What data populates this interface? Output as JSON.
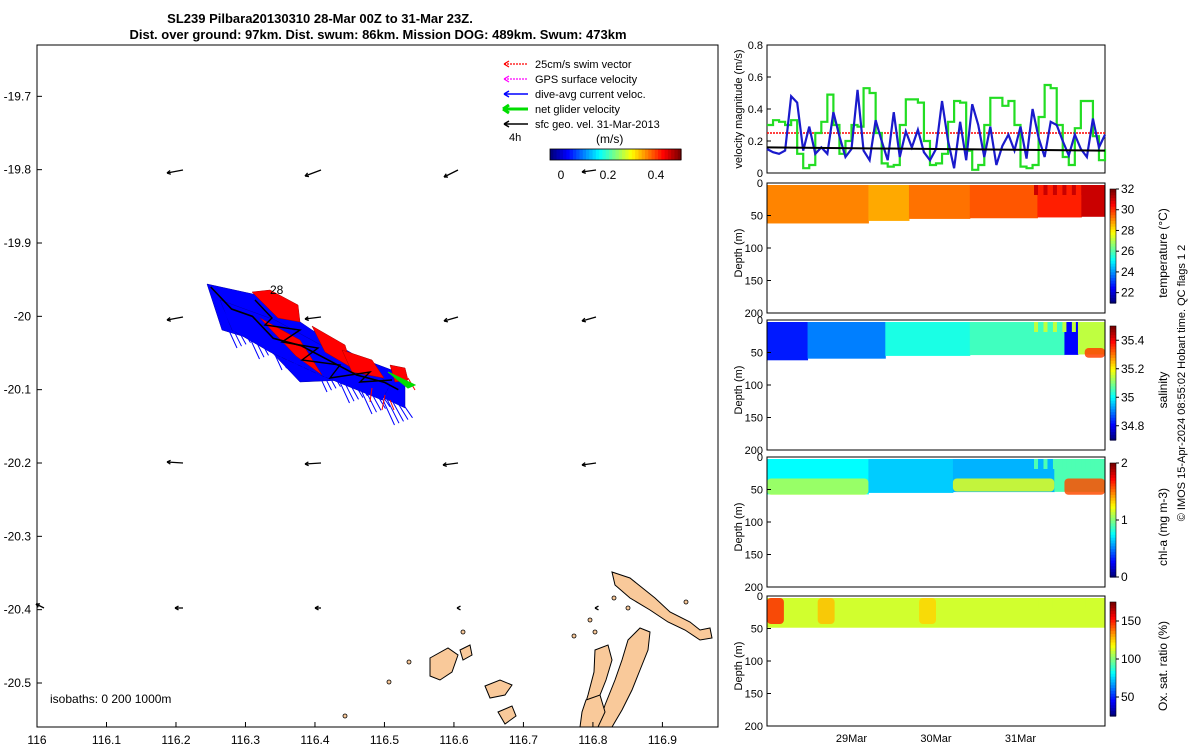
{
  "title_line1": "SL239 Pilbara20130310 28-Mar 00Z to 31-Mar 23Z.",
  "title_line2": "Dist. over ground: 97km. Dist. swum: 86km. Mission DOG: 489km. Swum: 473km",
  "credit": "© IMOS 15-Apr-2024 08:55:02 Hobart time. QC flags 1  2",
  "colors": {
    "swim": "#ff0000",
    "gps": "#ff00ff",
    "dive_avg": "#0000ff",
    "net": "#00dd00",
    "sfc_geo": "#000000",
    "land": "#f9c99a",
    "green_line": "#22dd22"
  },
  "chart_data": [
    {
      "id": "map",
      "type": "scatter",
      "x_ticks": [
        "116",
        "116.1",
        "116.2",
        "116.3",
        "116.4",
        "116.5",
        "116.6",
        "116.7",
        "116.8",
        "116.9"
      ],
      "y_ticks": [
        "-19.7",
        "-19.8",
        "-19.9",
        "-20",
        "-20.1",
        "-20.2",
        "-20.3",
        "-20.4",
        "-20.5"
      ],
      "xlim": [
        116.0,
        116.98
      ],
      "ylim": [
        -20.56,
        -19.63
      ],
      "legend": {
        "placement": "top-right",
        "entries": [
          "25cm/s swim vector",
          "GPS surface velocity",
          "dive-avg current veloc.",
          "net glider velocity",
          "sfc geo. vel. 31-Mar-2013"
        ],
        "interval": "4h"
      },
      "colorbar": {
        "label": "(m/s)",
        "ticks": [
          "0",
          "0.2",
          "0.4"
        ],
        "range": [
          0,
          0.5
        ]
      },
      "track_label": "28",
      "isobaths_label": "isobaths: 0   200  1000m",
      "track_points": [
        [
          116.25,
          -19.96
        ],
        [
          116.28,
          -19.99
        ],
        [
          116.31,
          -20.0
        ],
        [
          116.34,
          -20.03
        ],
        [
          116.38,
          -20.04
        ],
        [
          116.42,
          -20.06
        ],
        [
          116.46,
          -20.08
        ],
        [
          116.5,
          -20.09
        ],
        [
          116.52,
          -20.1
        ]
      ]
    },
    {
      "id": "velocity",
      "type": "line",
      "ylabel": "velocity magnitude (m/s)",
      "y_ticks": [
        "0",
        "0.2",
        "0.4",
        "0.6",
        "0.8"
      ],
      "ylim": [
        0,
        0.8
      ],
      "series": [
        {
          "values": [
            0.3,
            0.33,
            0.32,
            0.3,
            0.33,
            0.12,
            0.03,
            0.05,
            0.25,
            0.32,
            0.49,
            0.3,
            0.12,
            0.2,
            0.3,
            0.29,
            0.53,
            0.5,
            0.25,
            0.06,
            0.04,
            0.05,
            0.3,
            0.46,
            0.46,
            0.44,
            0.2,
            0.05,
            0.06,
            0.12,
            0.32,
            0.45,
            0.44,
            0.14,
            0.02,
            0.05,
            0.3,
            0.47,
            0.47,
            0.42,
            0.45,
            0.3,
            0.04,
            0.03,
            0.05,
            0.35,
            0.55,
            0.53,
            0.3,
            0.1,
            0.05,
            0.28,
            0.45,
            0.45,
            0.23,
            0.08,
            0.15
          ]
        },
        {
          "values": [
            0.15,
            0.13,
            0.12,
            0.14,
            0.48,
            0.44,
            0.14,
            0.29,
            0.12,
            0.16,
            0.12,
            0.38,
            0.23,
            0.1,
            0.15,
            0.52,
            0.14,
            0.08,
            0.33,
            0.2,
            0.08,
            0.38,
            0.1,
            0.26,
            0.16,
            0.27,
            0.13,
            0.08,
            0.15,
            0.45,
            0.2,
            0.03,
            0.32,
            0.08,
            0.43,
            0.3,
            0.1,
            0.29,
            0.05,
            0.17,
            0.24,
            0.14,
            0.29,
            0.09,
            0.4,
            0.22,
            0.1,
            0.32,
            0.3,
            0.2,
            0.11,
            0.24,
            0.15,
            0.1,
            0.34,
            0.16,
            0.24
          ]
        },
        {
          "values": [
            0.16,
            0.15,
            0.14
          ]
        },
        {
          "values": [
            0.25,
            0.25
          ]
        }
      ]
    },
    {
      "id": "temperature",
      "type": "heatmap",
      "ylabel": "Depth (m)",
      "colorbar_label": "temperature (°C)",
      "colorbar_ticks": [
        "22",
        "24",
        "26",
        "28",
        "30",
        "32"
      ],
      "clim": [
        21,
        32
      ],
      "y_ticks": [
        "0",
        "50",
        "100",
        "150",
        "200"
      ],
      "ylim": [
        200,
        0
      ],
      "segments": [
        [
          0.0,
          0.3,
          29.2
        ],
        [
          0.3,
          0.42,
          28.8
        ],
        [
          0.42,
          0.6,
          29.4
        ],
        [
          0.6,
          0.8,
          29.7
        ],
        [
          0.8,
          0.93,
          30.3
        ],
        [
          0.93,
          1.0,
          31.2
        ]
      ],
      "bottom_depths": [
        65,
        64,
        62,
        58,
        55,
        56,
        52,
        55,
        54,
        50
      ]
    },
    {
      "id": "salinity",
      "type": "heatmap",
      "ylabel": "Depth (m)",
      "colorbar_label": "salinity",
      "colorbar_ticks": [
        "34.8",
        "35",
        "35.2",
        "35.4"
      ],
      "clim": [
        34.7,
        35.5
      ],
      "y_ticks": [
        "0",
        "50",
        "100",
        "150",
        "200"
      ],
      "ylim": [
        200,
        0
      ],
      "segments": [
        [
          0.0,
          0.12,
          34.82
        ],
        [
          0.12,
          0.35,
          34.9
        ],
        [
          0.35,
          0.6,
          35.02
        ],
        [
          0.6,
          0.88,
          35.05
        ],
        [
          0.88,
          0.92,
          34.8
        ],
        [
          0.92,
          1.0,
          35.15
        ]
      ],
      "bottom_depths": [
        62,
        64,
        60,
        58,
        56,
        55,
        52,
        55,
        54,
        52
      ],
      "patches": [
        [
          0.94,
          1.0,
          40,
          55,
          35.35
        ]
      ]
    },
    {
      "id": "chla",
      "type": "heatmap",
      "ylabel": "Depth (m)",
      "colorbar_label": "chl-a (mg m-3)",
      "colorbar_ticks": [
        "0",
        "1",
        "2"
      ],
      "clim": [
        0,
        2
      ],
      "y_ticks": [
        "0",
        "50",
        "100",
        "150",
        "200"
      ],
      "ylim": [
        200,
        0
      ],
      "segments": [
        [
          0.0,
          0.3,
          0.75
        ],
        [
          0.3,
          0.55,
          0.65
        ],
        [
          0.55,
          0.85,
          0.6
        ],
        [
          0.85,
          1.0,
          0.9
        ]
      ],
      "bottom_depths": [
        60,
        58,
        56,
        56,
        55,
        54,
        52,
        55,
        54,
        52
      ],
      "patches": [
        [
          0.0,
          0.3,
          30,
          55,
          1.1
        ],
        [
          0.55,
          0.85,
          30,
          50,
          1.2
        ],
        [
          0.88,
          1.0,
          30,
          55,
          1.6
        ]
      ]
    },
    {
      "id": "oxygen",
      "type": "heatmap",
      "ylabel": "Depth (m)",
      "colorbar_label": "Ox. sat. ratio (%)",
      "colorbar_ticks": [
        "50",
        "100",
        "150"
      ],
      "clim": [
        25,
        175
      ],
      "y_ticks": [
        "0",
        "50",
        "100",
        "150",
        "200"
      ],
      "ylim": [
        200,
        0
      ],
      "segments": [
        [
          0.0,
          1.0,
          112
        ]
      ],
      "bottom_depths": [
        52,
        52,
        50,
        50,
        48,
        48,
        47,
        48,
        47,
        46
      ],
      "patches": [
        [
          0.0,
          0.05,
          0,
          40,
          150
        ],
        [
          0.15,
          0.2,
          0,
          40,
          128
        ],
        [
          0.45,
          0.5,
          0,
          40,
          125
        ]
      ]
    },
    {
      "id": "time-axis",
      "type": "line",
      "x_ticks": [
        "29Mar",
        "30Mar",
        "31Mar"
      ],
      "xlim": [
        0,
        4
      ]
    }
  ]
}
